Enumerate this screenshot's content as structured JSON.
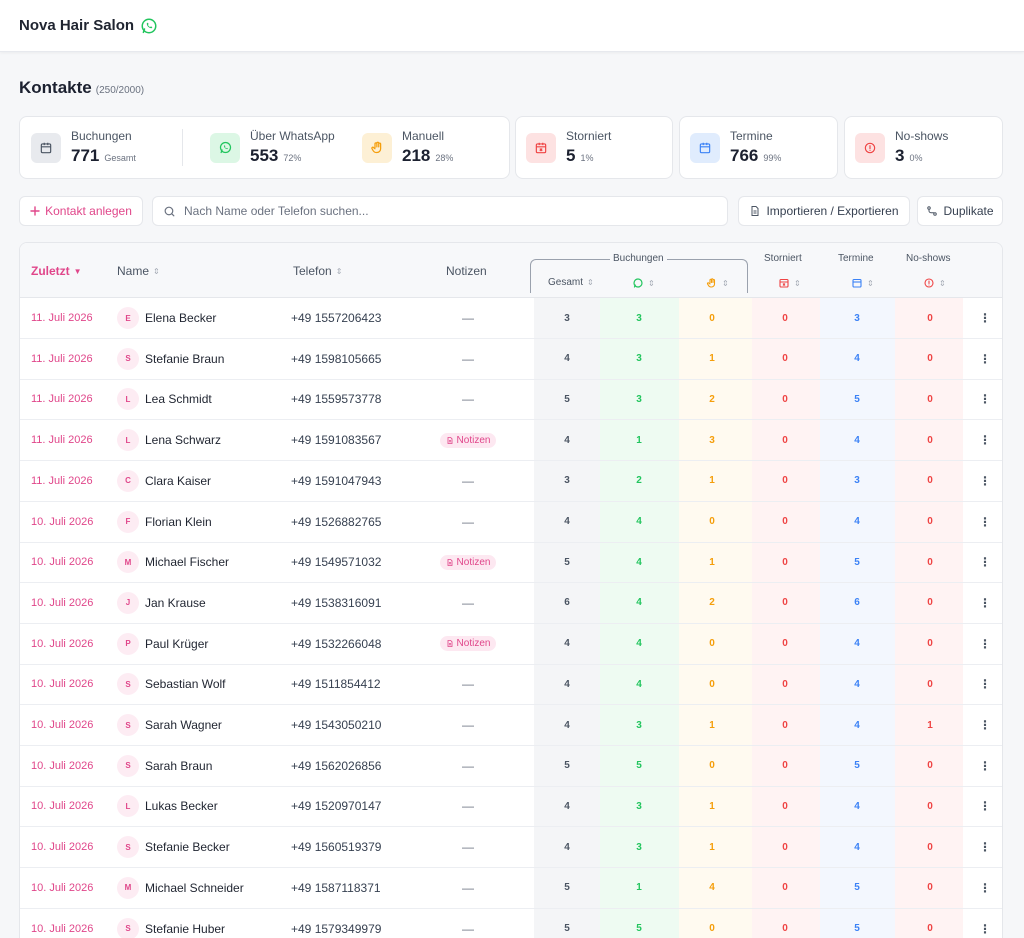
{
  "header": {
    "title": "Nova Hair Salon",
    "icon": "whatsapp-icon"
  },
  "page": {
    "title": "Kontakte",
    "count": "(250/2000)"
  },
  "stats": {
    "buchungen": {
      "label": "Buchungen",
      "value": "771",
      "sub": "Gesamt",
      "icon": "calendar-icon"
    },
    "whatsapp": {
      "label": "Über WhatsApp",
      "value": "553",
      "pct": "72%",
      "icon": "whatsapp-icon"
    },
    "manuell": {
      "label": "Manuell",
      "value": "218",
      "pct": "28%",
      "icon": "hand-icon"
    },
    "storniert": {
      "label": "Storniert",
      "value": "5",
      "pct": "1%",
      "icon": "calendar-x-icon"
    },
    "termine": {
      "label": "Termine",
      "value": "766",
      "pct": "99%",
      "icon": "calendar-icon"
    },
    "noshows": {
      "label": "No-shows",
      "value": "3",
      "pct": "0%",
      "icon": "alert-circle-icon"
    }
  },
  "toolbar": {
    "add_label": "Kontakt anlegen",
    "search_placeholder": "Nach Name oder Telefon suchen...",
    "import_label": "Importieren / Exportieren",
    "duplicates_label": "Duplikate"
  },
  "table": {
    "headers": {
      "zuletzt": "Zuletzt",
      "name": "Name",
      "telefon": "Telefon",
      "notizen": "Notizen",
      "buchungen": "Buchungen",
      "gesamt": "Gesamt",
      "storniert": "Storniert",
      "termine": "Termine",
      "noshows": "No-shows"
    },
    "note_badge_label": "Notizen",
    "empty_note": "—",
    "rows": [
      {
        "date": "11. Juli 2026",
        "initial": "E",
        "name": "Elena Becker",
        "phone": "+49 1557206423",
        "note": false,
        "gesamt": "3",
        "whatsapp": "3",
        "manuell": "0",
        "storniert": "0",
        "termine": "3",
        "noshows": "0"
      },
      {
        "date": "11. Juli 2026",
        "initial": "S",
        "name": "Stefanie Braun",
        "phone": "+49 1598105665",
        "note": false,
        "gesamt": "4",
        "whatsapp": "3",
        "manuell": "1",
        "storniert": "0",
        "termine": "4",
        "noshows": "0"
      },
      {
        "date": "11. Juli 2026",
        "initial": "L",
        "name": "Lea Schmidt",
        "phone": "+49 1559573778",
        "note": false,
        "gesamt": "5",
        "whatsapp": "3",
        "manuell": "2",
        "storniert": "0",
        "termine": "5",
        "noshows": "0"
      },
      {
        "date": "11. Juli 2026",
        "initial": "L",
        "name": "Lena Schwarz",
        "phone": "+49 1591083567",
        "note": true,
        "gesamt": "4",
        "whatsapp": "1",
        "manuell": "3",
        "storniert": "0",
        "termine": "4",
        "noshows": "0"
      },
      {
        "date": "11. Juli 2026",
        "initial": "C",
        "name": "Clara Kaiser",
        "phone": "+49 1591047943",
        "note": false,
        "gesamt": "3",
        "whatsapp": "2",
        "manuell": "1",
        "storniert": "0",
        "termine": "3",
        "noshows": "0"
      },
      {
        "date": "10. Juli 2026",
        "initial": "F",
        "name": "Florian Klein",
        "phone": "+49 1526882765",
        "note": false,
        "gesamt": "4",
        "whatsapp": "4",
        "manuell": "0",
        "storniert": "0",
        "termine": "4",
        "noshows": "0"
      },
      {
        "date": "10. Juli 2026",
        "initial": "M",
        "name": "Michael Fischer",
        "phone": "+49 1549571032",
        "note": true,
        "gesamt": "5",
        "whatsapp": "4",
        "manuell": "1",
        "storniert": "0",
        "termine": "5",
        "noshows": "0"
      },
      {
        "date": "10. Juli 2026",
        "initial": "J",
        "name": "Jan Krause",
        "phone": "+49 1538316091",
        "note": false,
        "gesamt": "6",
        "whatsapp": "4",
        "manuell": "2",
        "storniert": "0",
        "termine": "6",
        "noshows": "0"
      },
      {
        "date": "10. Juli 2026",
        "initial": "P",
        "name": "Paul Krüger",
        "phone": "+49 1532266048",
        "note": true,
        "gesamt": "4",
        "whatsapp": "4",
        "manuell": "0",
        "storniert": "0",
        "termine": "4",
        "noshows": "0"
      },
      {
        "date": "10. Juli 2026",
        "initial": "S",
        "name": "Sebastian Wolf",
        "phone": "+49 1511854412",
        "note": false,
        "gesamt": "4",
        "whatsapp": "4",
        "manuell": "0",
        "storniert": "0",
        "termine": "4",
        "noshows": "0"
      },
      {
        "date": "10. Juli 2026",
        "initial": "S",
        "name": "Sarah Wagner",
        "phone": "+49 1543050210",
        "note": false,
        "gesamt": "4",
        "whatsapp": "3",
        "manuell": "1",
        "storniert": "0",
        "termine": "4",
        "noshows": "1"
      },
      {
        "date": "10. Juli 2026",
        "initial": "S",
        "name": "Sarah Braun",
        "phone": "+49 1562026856",
        "note": false,
        "gesamt": "5",
        "whatsapp": "5",
        "manuell": "0",
        "storniert": "0",
        "termine": "5",
        "noshows": "0"
      },
      {
        "date": "10. Juli 2026",
        "initial": "L",
        "name": "Lukas Becker",
        "phone": "+49 1520970147",
        "note": false,
        "gesamt": "4",
        "whatsapp": "3",
        "manuell": "1",
        "storniert": "0",
        "termine": "4",
        "noshows": "0"
      },
      {
        "date": "10. Juli 2026",
        "initial": "S",
        "name": "Stefanie Becker",
        "phone": "+49 1560519379",
        "note": false,
        "gesamt": "4",
        "whatsapp": "3",
        "manuell": "1",
        "storniert": "0",
        "termine": "4",
        "noshows": "0"
      },
      {
        "date": "10. Juli 2026",
        "initial": "M",
        "name": "Michael Schneider",
        "phone": "+49 1587118371",
        "note": false,
        "gesamt": "5",
        "whatsapp": "1",
        "manuell": "4",
        "storniert": "0",
        "termine": "5",
        "noshows": "0"
      },
      {
        "date": "10. Juli 2026",
        "initial": "S",
        "name": "Stefanie Huber",
        "phone": "+49 1579349979",
        "note": false,
        "gesamt": "5",
        "whatsapp": "5",
        "manuell": "0",
        "storniert": "0",
        "termine": "5",
        "noshows": "0"
      }
    ]
  },
  "colors": {
    "accent": "#e0468a",
    "whatsapp": "#22c55e",
    "manuell": "#f59e0b",
    "storniert": "#ef4444",
    "termine": "#3b82f6",
    "gesamt": "#4b5563"
  }
}
